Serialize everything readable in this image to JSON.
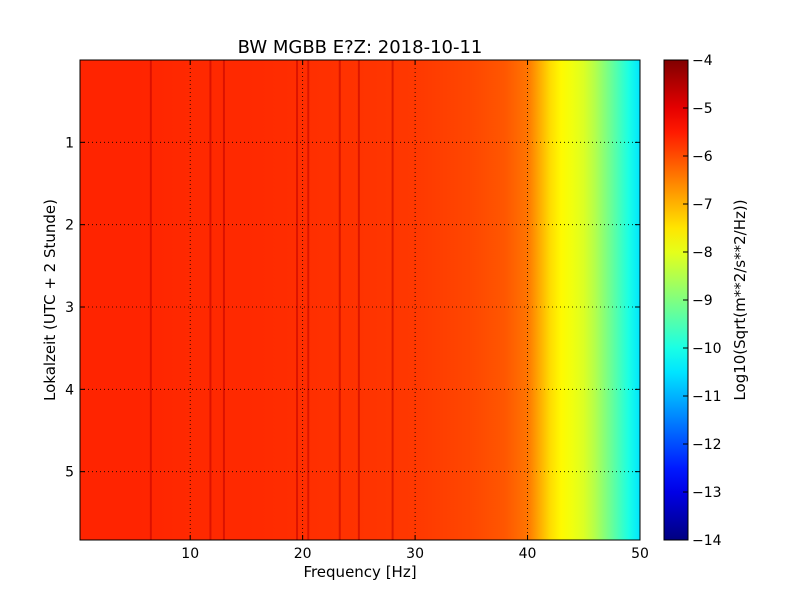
{
  "chart_data": {
    "type": "heatmap",
    "title": "BW MGBB E?Z: 2018-10-11",
    "xlabel": "Frequency [Hz]",
    "ylabel": "Lokalzeit (UTC + 2 Stunde)",
    "xlim": [
      0.2,
      50
    ],
    "ylim": [
      5.83,
      0.0
    ],
    "xticks": [
      10,
      20,
      30,
      40,
      50
    ],
    "xtick_labels": [
      "10",
      "20",
      "30",
      "40",
      "50"
    ],
    "yticks": [
      1,
      2,
      3,
      4,
      5
    ],
    "ytick_labels": [
      "1",
      "2",
      "3",
      "4",
      "5"
    ],
    "grid": true,
    "colorbar": {
      "label": "Log10(Sqrt(m**2/s**2/Hz))",
      "min": -14,
      "max": -4,
      "ticks": [
        -4,
        -5,
        -6,
        -7,
        -8,
        -9,
        -10,
        -11,
        -12,
        -13,
        -14
      ],
      "tick_labels": [
        "−4",
        "−5",
        "−6",
        "−7",
        "−8",
        "−9",
        "−10",
        "−11",
        "−12",
        "−13",
        "−14"
      ],
      "colormap": "jet"
    },
    "spectrum_profile": {
      "frequency_hz": [
        0,
        5,
        10,
        15,
        20,
        25,
        30,
        35,
        38,
        40,
        41,
        42,
        43,
        44,
        45,
        46,
        47,
        48,
        49,
        50
      ],
      "log10_amplitude": [
        -5.6,
        -5.6,
        -5.65,
        -5.65,
        -5.7,
        -5.75,
        -5.8,
        -5.95,
        -6.1,
        -6.4,
        -6.9,
        -7.4,
        -7.7,
        -7.9,
        -8.1,
        -8.5,
        -9.0,
        -9.5,
        -10.0,
        -10.5
      ]
    },
    "narrowband_lines_hz": [
      6.5,
      11.8,
      13.0,
      19.5,
      20.5,
      23.3,
      25.0,
      28.0
    ]
  }
}
